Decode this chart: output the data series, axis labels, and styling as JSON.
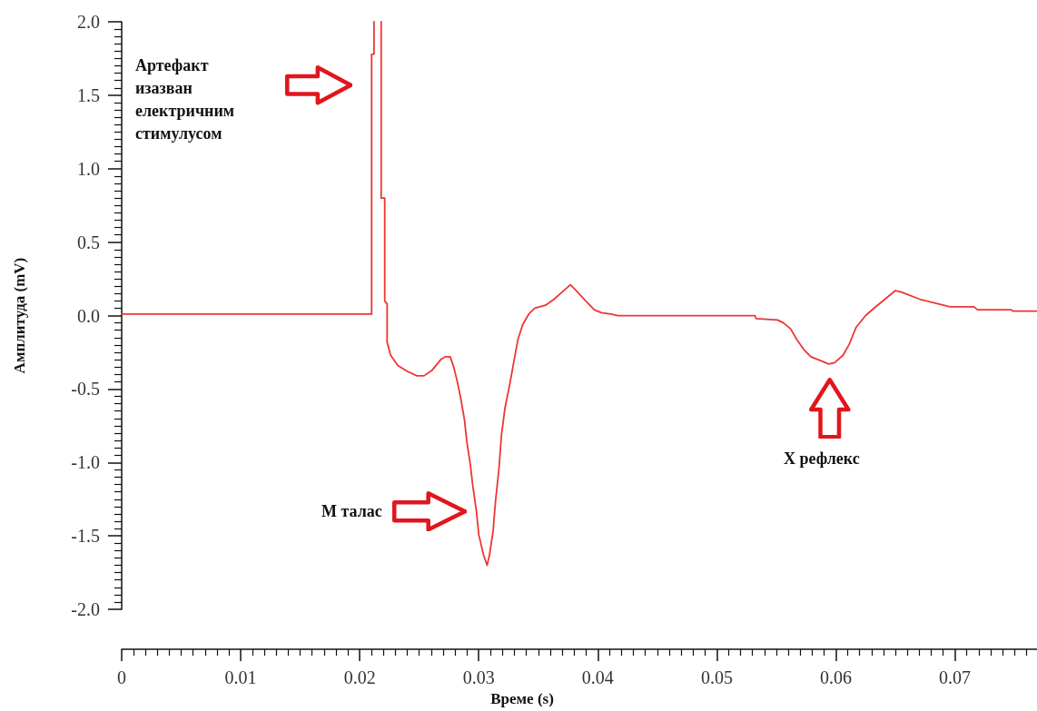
{
  "chart_data": {
    "type": "line",
    "xlabel": "Време (s)",
    "ylabel": "Амплитуда (mV)",
    "x": [
      0,
      0.021,
      0.021,
      0.0212,
      0.0212,
      0.0215,
      0.0218,
      0.0218,
      0.0221,
      0.0221,
      0.0223,
      0.0223,
      0.0226,
      0.0232,
      0.024,
      0.0248,
      0.0254,
      0.0261,
      0.0268,
      0.0272,
      0.0276,
      0.0279,
      0.0282,
      0.0285,
      0.0288,
      0.029,
      0.0293,
      0.0295,
      0.0298,
      0.03,
      0.0304,
      0.0307,
      0.0309,
      0.0312,
      0.0314,
      0.0317,
      0.0319,
      0.0322,
      0.0326,
      0.033,
      0.0333,
      0.0337,
      0.0342,
      0.0347,
      0.0356,
      0.0363,
      0.037,
      0.0377,
      0.0383,
      0.0391,
      0.0397,
      0.0403,
      0.0411,
      0.0417,
      0.0532,
      0.0533,
      0.0551,
      0.0556,
      0.0562,
      0.0567,
      0.0573,
      0.0579,
      0.0588,
      0.0594,
      0.0599,
      0.0606,
      0.0611,
      0.0617,
      0.0625,
      0.0632,
      0.0641,
      0.065,
      0.0655,
      0.0671,
      0.0686,
      0.0696,
      0.0716,
      0.0719,
      0.0747,
      0.0749,
      0.0769
    ],
    "series": [
      {
        "color": "#ee3535",
        "values": [
          0.01,
          0.01,
          1.78,
          1.78,
          2.0,
          null,
          2.0,
          0.8,
          0.8,
          0.1,
          0.08,
          -0.18,
          -0.27,
          -0.34,
          -0.38,
          -0.41,
          -0.41,
          -0.37,
          -0.3,
          -0.28,
          -0.28,
          -0.35,
          -0.45,
          -0.57,
          -0.71,
          -0.86,
          -1.02,
          -1.16,
          -1.33,
          -1.49,
          -1.63,
          -1.7,
          -1.63,
          -1.47,
          -1.27,
          -1.04,
          -0.82,
          -0.63,
          -0.47,
          -0.29,
          -0.16,
          -0.06,
          0.01,
          0.05,
          0.07,
          0.11,
          0.16,
          0.21,
          0.16,
          0.09,
          0.04,
          0.02,
          0.01,
          0.0,
          0.0,
          -0.02,
          -0.03,
          -0.05,
          -0.09,
          -0.16,
          -0.23,
          -0.28,
          -0.31,
          -0.33,
          -0.32,
          -0.27,
          -0.2,
          -0.08,
          0.0,
          0.05,
          0.11,
          0.17,
          0.16,
          0.11,
          0.08,
          0.06,
          0.06,
          0.04,
          0.04,
          0.03,
          0.03
        ]
      }
    ],
    "xlim": [
      0,
      0.0769
    ],
    "ylim": [
      -2,
      2
    ],
    "xticks": [
      0,
      0.01,
      0.02,
      0.03,
      0.04,
      0.05,
      0.06,
      0.07
    ],
    "yticks": [
      {
        "value": -2,
        "label": "-2.0"
      },
      -1.5,
      {
        "value": -1,
        "label": "-1.0"
      },
      -0.5,
      {
        "value": 0,
        "label": "0.0"
      },
      0.5,
      {
        "value": 1,
        "label": "1.0"
      },
      1.5,
      {
        "value": 2,
        "label": "2.0"
      }
    ],
    "annotations": [
      "Артефакт изазван електричним стимулусом",
      "М талас",
      "Х рефлекс"
    ],
    "grid": false
  }
}
